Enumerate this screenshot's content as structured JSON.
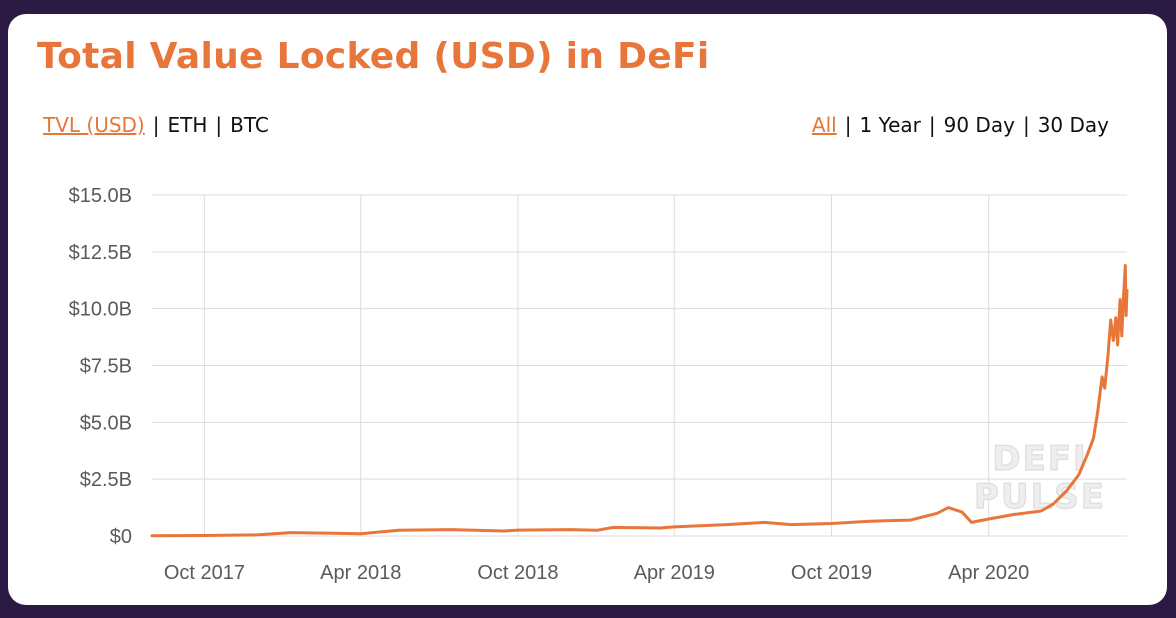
{
  "header": {
    "title": "Total Value Locked (USD) in DeFi"
  },
  "metric_toggle": {
    "options": [
      "TVL (USD)",
      "ETH",
      "BTC"
    ],
    "active_index": 0
  },
  "range_toggle": {
    "options": [
      "All",
      "1 Year",
      "90 Day",
      "30 Day"
    ],
    "active_index": 0
  },
  "watermark": [
    "DEFI",
    "PULSE"
  ],
  "colors": {
    "accent": "#e8763a",
    "background": "#2a1a44",
    "card": "#ffffff",
    "grid": "#dddddd"
  },
  "chart_data": {
    "type": "line",
    "title": "Total Value Locked (USD) in DeFi",
    "xlabel": "",
    "ylabel": "",
    "ylim": [
      0,
      15
    ],
    "y_unit": "USD billions",
    "y_ticks": [
      0,
      2.5,
      5,
      7.5,
      10,
      12.5,
      15
    ],
    "y_tick_labels": [
      "$0",
      "$2.5B",
      "$5.0B",
      "$7.5B",
      "$10.0B",
      "$12.5B",
      "$15.0B"
    ],
    "xlim": [
      "2017-08-01",
      "2020-09-09"
    ],
    "x_ticks": [
      "2017-10-01",
      "2018-04-01",
      "2018-10-01",
      "2019-04-01",
      "2019-10-01",
      "2020-04-01"
    ],
    "x_tick_labels": [
      "Oct 2017",
      "Apr 2018",
      "Oct 2018",
      "Apr 2019",
      "Oct 2019",
      "Apr 2020"
    ],
    "grid": true,
    "series": [
      {
        "color": "#e8763a",
        "points": [
          [
            "2017-08-01",
            0.01
          ],
          [
            "2017-10-01",
            0.02
          ],
          [
            "2017-12-01",
            0.05
          ],
          [
            "2018-01-10",
            0.15
          ],
          [
            "2018-03-01",
            0.12
          ],
          [
            "2018-04-01",
            0.1
          ],
          [
            "2018-05-15",
            0.25
          ],
          [
            "2018-07-15",
            0.28
          ],
          [
            "2018-09-15",
            0.22
          ],
          [
            "2018-10-01",
            0.26
          ],
          [
            "2018-12-01",
            0.28
          ],
          [
            "2019-01-01",
            0.25
          ],
          [
            "2019-01-20",
            0.38
          ],
          [
            "2019-03-15",
            0.35
          ],
          [
            "2019-04-01",
            0.4
          ],
          [
            "2019-06-01",
            0.5
          ],
          [
            "2019-07-15",
            0.6
          ],
          [
            "2019-08-15",
            0.5
          ],
          [
            "2019-10-01",
            0.55
          ],
          [
            "2019-11-15",
            0.65
          ],
          [
            "2020-01-01",
            0.7
          ],
          [
            "2020-02-01",
            1.0
          ],
          [
            "2020-02-14",
            1.25
          ],
          [
            "2020-03-01",
            1.05
          ],
          [
            "2020-03-12",
            0.6
          ],
          [
            "2020-04-01",
            0.75
          ],
          [
            "2020-05-01",
            0.95
          ],
          [
            "2020-06-01",
            1.1
          ],
          [
            "2020-06-15",
            1.4
          ],
          [
            "2020-07-01",
            2.0
          ],
          [
            "2020-07-15",
            2.7
          ],
          [
            "2020-07-25",
            3.6
          ],
          [
            "2020-08-01",
            4.3
          ],
          [
            "2020-08-06",
            5.5
          ],
          [
            "2020-08-11",
            7.0
          ],
          [
            "2020-08-14",
            6.5
          ],
          [
            "2020-08-18",
            8.0
          ],
          [
            "2020-08-21",
            9.5
          ],
          [
            "2020-08-24",
            8.6
          ],
          [
            "2020-08-27",
            9.6
          ],
          [
            "2020-08-29",
            8.4
          ],
          [
            "2020-09-01",
            10.4
          ],
          [
            "2020-09-03",
            8.8
          ],
          [
            "2020-09-05",
            10.6
          ],
          [
            "2020-09-07",
            11.9
          ],
          [
            "2020-09-08",
            9.7
          ],
          [
            "2020-09-09",
            10.8
          ]
        ]
      }
    ]
  }
}
